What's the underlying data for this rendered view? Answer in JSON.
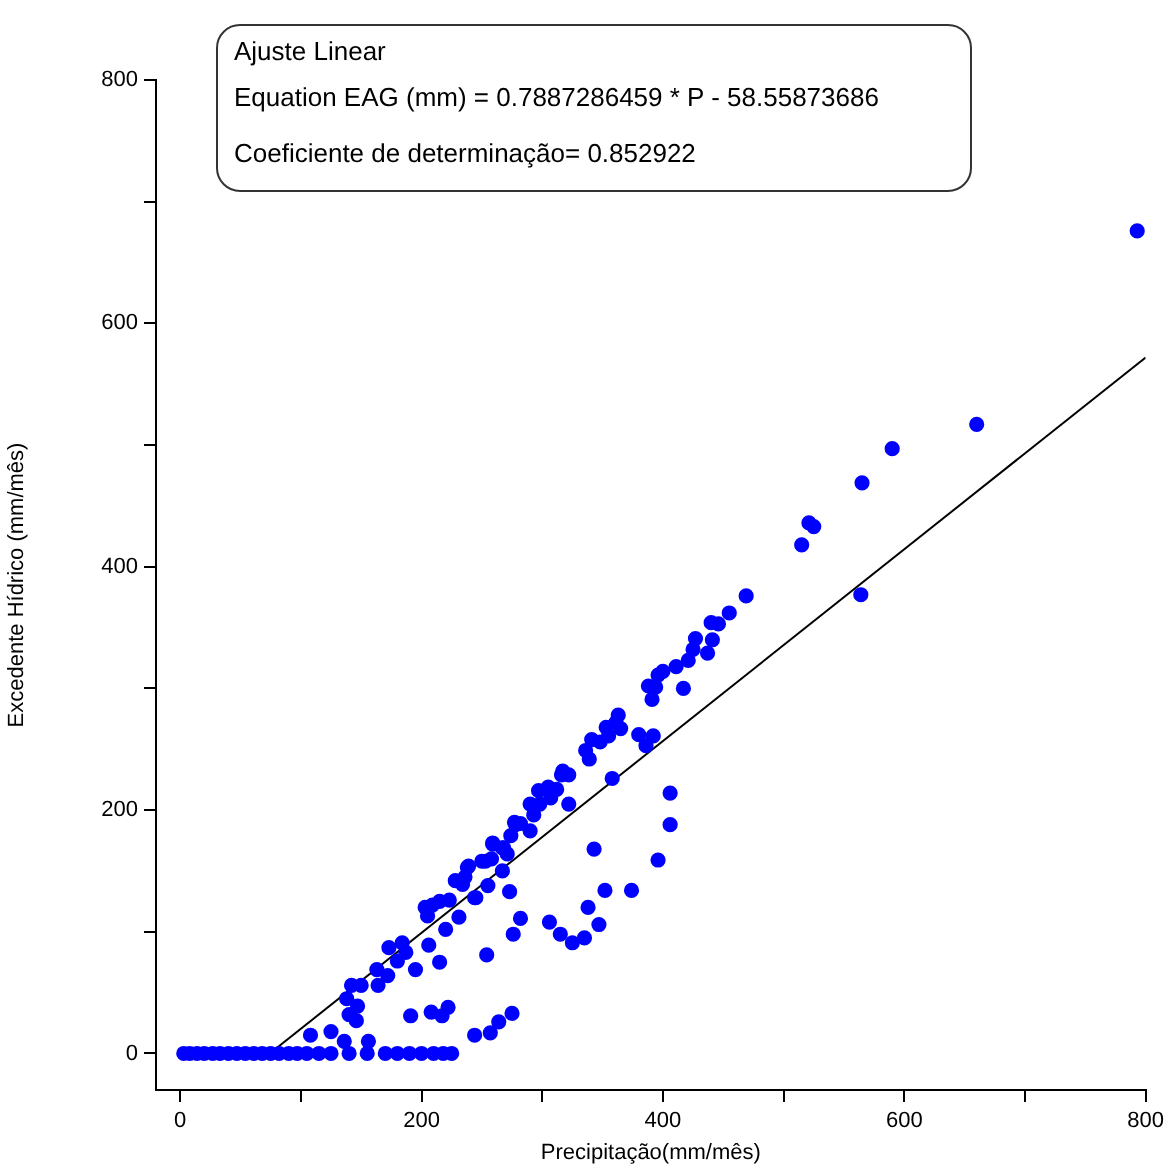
{
  "chart_data": {
    "type": "scatter",
    "xlabel": "Precipitação(mm/mês)",
    "ylabel": "Excedente Hídrico (mm/mês)",
    "annotations": [
      "Ajuste  Linear",
      "Equation EAG (mm) = 0.7887286459 * P - 58.55873686",
      "Coeficiente de determinação= 0.852922"
    ],
    "xlim": [
      -20,
      800
    ],
    "ylim": [
      -30,
      800
    ],
    "xticks": [
      0,
      {
        "value": 100,
        "label": null
      },
      200,
      {
        "value": 300,
        "label": null
      },
      400,
      {
        "value": 500,
        "label": null
      },
      600,
      {
        "value": 700,
        "label": null
      },
      800
    ],
    "yticks": [
      0,
      {
        "value": 100,
        "label": null
      },
      200,
      {
        "value": 300,
        "label": null
      },
      400,
      {
        "value": 500,
        "label": null
      },
      600,
      {
        "value": 700,
        "label": null
      },
      800
    ],
    "grid": false,
    "legend": false,
    "series": [
      {
        "type": "scatter",
        "color": "#0000ff",
        "marker": "circle",
        "x": [
          3,
          8,
          14,
          20,
          27,
          33,
          40,
          47,
          54,
          61,
          68,
          75,
          82,
          90,
          97,
          105,
          115,
          125,
          140,
          155,
          170,
          180,
          190,
          200,
          210,
          218,
          225,
          108,
          125,
          136,
          156,
          244,
          257,
          264,
          275,
          191,
          208,
          217,
          222,
          140,
          146,
          138,
          147,
          142,
          150,
          164,
          172,
          163,
          173,
          184,
          180,
          195,
          215,
          206,
          187,
          220,
          203,
          209,
          215,
          205,
          223,
          228,
          238,
          245,
          250,
          259,
          267,
          278,
          297,
          316,
          469,
          455,
          446,
          440,
          441,
          427,
          425,
          437,
          421,
          411,
          417,
          400,
          396,
          388,
          394,
          391,
          392,
          380,
          386,
          363,
          361,
          365,
          353,
          355,
          348,
          341,
          336,
          339,
          358,
          322,
          317,
          312,
          305,
          307,
          322,
          298,
          290,
          293,
          282,
          277,
          290,
          274,
          268,
          259,
          271,
          253,
          258,
          267,
          239,
          236,
          234,
          255,
          273,
          244,
          406,
          406,
          396,
          343,
          374,
          352,
          338,
          347,
          306,
          315,
          325,
          335,
          282,
          276,
          254,
          231,
          793,
          660,
          590,
          565,
          521,
          525,
          515,
          564
        ],
        "values": [
          0,
          0,
          0,
          0,
          0,
          0,
          0,
          0,
          0,
          0,
          0,
          0,
          0,
          0,
          0,
          0,
          0,
          0,
          0,
          0,
          0,
          0,
          0,
          0,
          0,
          0,
          0,
          15,
          18,
          10,
          10,
          15,
          17,
          26,
          33,
          31,
          34,
          31,
          38,
          32,
          27,
          45,
          39,
          56,
          56,
          56,
          64,
          69,
          87,
          91,
          76,
          69,
          75,
          89,
          83,
          102,
          120,
          122,
          125,
          113,
          126,
          142,
          153,
          128,
          158,
          173,
          169,
          188,
          216,
          229,
          376,
          362,
          353,
          354,
          340,
          341,
          332,
          329,
          323,
          318,
          300,
          314,
          311,
          302,
          301,
          291,
          261,
          262,
          253,
          278,
          272,
          267,
          268,
          261,
          256,
          258,
          249,
          242,
          226,
          229,
          232,
          217,
          219,
          210,
          205,
          205,
          205,
          196,
          189,
          190,
          183,
          179,
          169,
          172,
          164,
          158,
          160,
          150,
          154,
          145,
          139,
          138,
          133,
          128,
          214,
          188,
          159,
          168,
          134,
          134,
          120,
          106,
          108,
          98,
          91,
          95,
          111,
          98,
          81,
          112,
          676,
          517,
          497,
          469,
          436,
          433,
          418,
          377
        ]
      },
      {
        "type": "line",
        "color": "#000000",
        "marker": "none",
        "line_style": "solid",
        "x": [
          74.25,
          800
        ],
        "values": [
          0,
          572
        ]
      }
    ]
  }
}
